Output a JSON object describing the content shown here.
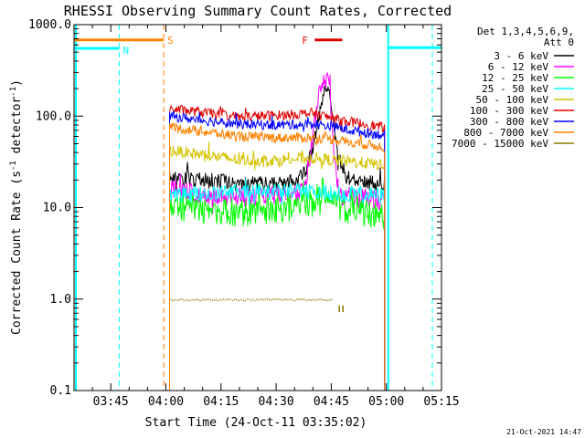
{
  "chart_data": {
    "type": "line",
    "title": "RHESSI Observing Summary Count Rates, Corrected",
    "xlabel": "Start Time (24-Oct-11 03:35:02)",
    "ylabel": "Corrected Count Rate (s⁻¹ detector⁻¹)",
    "ylabel_parts": {
      "main": "Corrected Count Rate (s",
      "exp1": "-1",
      "mid": " detector",
      "exp2": "-1",
      "end": ")"
    },
    "x_range_min": [
      35.0,
      135.0
    ],
    "y_scale": "log",
    "ylim": [
      0.1,
      1000
    ],
    "x_ticks": [
      {
        "min": 45,
        "label": "03:45"
      },
      {
        "min": 60,
        "label": "04:00"
      },
      {
        "min": 75,
        "label": "04:15"
      },
      {
        "min": 90,
        "label": "04:30"
      },
      {
        "min": 105,
        "label": "04:45"
      },
      {
        "min": 120,
        "label": "05:00"
      },
      {
        "min": 135,
        "label": "05:15"
      }
    ],
    "y_ticks": [
      {
        "v": 0.1,
        "label": "0.1"
      },
      {
        "v": 1,
        "label": "1.0"
      },
      {
        "v": 10,
        "label": "10.0"
      },
      {
        "v": 100,
        "label": "100.0"
      },
      {
        "v": 1000,
        "label": "1000.0"
      }
    ],
    "legend": {
      "position": "right",
      "header": [
        "Det 1,3,4,5,6,9,",
        "Att 0"
      ],
      "entries": [
        {
          "label": "3 - 6 keV",
          "color": "#000000"
        },
        {
          "label": "6 - 12 keV",
          "color": "#ff00ff"
        },
        {
          "label": "12 - 25 keV",
          "color": "#00ff00"
        },
        {
          "label": "25 - 50 keV",
          "color": "#00ffff"
        },
        {
          "label": "50 - 100 keV",
          "color": "#d4c400"
        },
        {
          "label": "100 - 300 keV",
          "color": "#e00000"
        },
        {
          "label": "300 - 800 keV",
          "color": "#0000ff"
        },
        {
          "label": "800 - 7000 keV",
          "color": "#ff8000"
        },
        {
          "label": "7000 - 15000 keV",
          "color": "#8c7800"
        }
      ]
    },
    "data_window_min": [
      61.0,
      119.5
    ],
    "series": [
      {
        "label": "3 - 6 keV",
        "color": "#000000",
        "noise": 0.04,
        "points": [
          [
            61,
            22
          ],
          [
            70,
            20
          ],
          [
            80,
            18.5
          ],
          [
            90,
            18
          ],
          [
            95,
            19
          ],
          [
            98,
            24
          ],
          [
            100,
            45
          ],
          [
            101.5,
            90
          ],
          [
            103,
            160
          ],
          [
            104,
            210
          ],
          [
            105,
            150
          ],
          [
            106,
            70
          ],
          [
            107,
            35
          ],
          [
            109,
            22
          ],
          [
            115,
            19
          ],
          [
            119.5,
            18
          ]
        ]
      },
      {
        "label": "6 - 12 keV",
        "color": "#ff00ff",
        "noise": 0.05,
        "points": [
          [
            61,
            16
          ],
          [
            70,
            14
          ],
          [
            80,
            13
          ],
          [
            90,
            13.5
          ],
          [
            96,
            14
          ],
          [
            98,
            18
          ],
          [
            100,
            60
          ],
          [
            101.5,
            160
          ],
          [
            103,
            250
          ],
          [
            104,
            270
          ],
          [
            104.5,
            200
          ],
          [
            105.5,
            60
          ],
          [
            106.5,
            18
          ],
          [
            108,
            13.5
          ],
          [
            115,
            12.5
          ],
          [
            119.5,
            12
          ]
        ]
      },
      {
        "label": "12 - 25 keV",
        "color": "#00ff00",
        "noise": 0.07,
        "points": [
          [
            61,
            10.5
          ],
          [
            70,
            9.5
          ],
          [
            80,
            8.8
          ],
          [
            90,
            9.5
          ],
          [
            100,
            11
          ],
          [
            102,
            15
          ],
          [
            103,
            17
          ],
          [
            104.5,
            13
          ],
          [
            107,
            10
          ],
          [
            115,
            8.5
          ],
          [
            119.5,
            8
          ]
        ]
      },
      {
        "label": "25 - 50 keV",
        "color": "#00ffff",
        "noise": 0.04,
        "points": [
          [
            61,
            14
          ],
          [
            70,
            14
          ],
          [
            80,
            15
          ],
          [
            90,
            15
          ],
          [
            100,
            15
          ],
          [
            105,
            14.5
          ],
          [
            110,
            14
          ],
          [
            119.5,
            13.5
          ]
        ]
      },
      {
        "label": "50 - 100 keV",
        "color": "#d4c400",
        "noise": 0.03,
        "points": [
          [
            61,
            42
          ],
          [
            70,
            38
          ],
          [
            80,
            33
          ],
          [
            90,
            33
          ],
          [
            100,
            35
          ],
          [
            105,
            33
          ],
          [
            110,
            32
          ],
          [
            119.5,
            29
          ]
        ]
      },
      {
        "label": "100 - 300 keV",
        "color": "#e00000",
        "noise": 0.025,
        "points": [
          [
            61,
            120
          ],
          [
            70,
            110
          ],
          [
            80,
            98
          ],
          [
            90,
            102
          ],
          [
            100,
            108
          ],
          [
            105,
            95
          ],
          [
            110,
            87
          ],
          [
            119.5,
            75
          ]
        ]
      },
      {
        "label": "300 - 800 keV",
        "color": "#0000ff",
        "noise": 0.025,
        "points": [
          [
            61,
            100
          ],
          [
            70,
            90
          ],
          [
            80,
            82
          ],
          [
            90,
            80
          ],
          [
            100,
            82
          ],
          [
            105,
            78
          ],
          [
            110,
            70
          ],
          [
            119.5,
            62
          ]
        ]
      },
      {
        "label": "800 - 7000 keV",
        "color": "#ff8000",
        "noise": 0.025,
        "points": [
          [
            61,
            75
          ],
          [
            70,
            68
          ],
          [
            80,
            60
          ],
          [
            90,
            58
          ],
          [
            100,
            58
          ],
          [
            105,
            56
          ],
          [
            110,
            52
          ],
          [
            119.5,
            46
          ]
        ]
      }
    ],
    "series_7000_15000": {
      "label": "7000 - 15000 keV",
      "color": "#8c7800",
      "segments": [
        {
          "min": [
            61,
            105
          ],
          "v": 0.98
        }
      ],
      "drops": [
        {
          "min": 107.2,
          "v": [
            0.72,
            0.85
          ]
        },
        {
          "min": 108.2,
          "v": [
            0.72,
            0.85
          ]
        }
      ]
    },
    "annotations": {
      "night_top_segments": [
        {
          "min": [
            35,
            47.3
          ],
          "v": 550
        },
        {
          "min": [
            120.5,
            135
          ],
          "v": 560
        }
      ],
      "night_vlines": [
        {
          "min": 35.5,
          "style": "solid"
        },
        {
          "min": 47.3,
          "style": "dashed"
        },
        {
          "min": 120.5,
          "style": "solid"
        },
        {
          "min": 132.5,
          "style": "dashed"
        }
      ],
      "saa_top_segment": {
        "min": [
          35,
          59.4
        ],
        "v": 680
      },
      "saa_vline": {
        "min": 59.4,
        "style": "dashed"
      },
      "flare_bar": {
        "min": [
          100.5,
          108
        ],
        "v": 680
      },
      "labels": {
        "night": "N",
        "saa": "S",
        "flare": "F"
      },
      "colors": {
        "night": "#00ffff",
        "saa": "#ff8000",
        "flare": "#e00000"
      }
    },
    "footer_timestamp": "21-Oct-2021 14:47"
  }
}
